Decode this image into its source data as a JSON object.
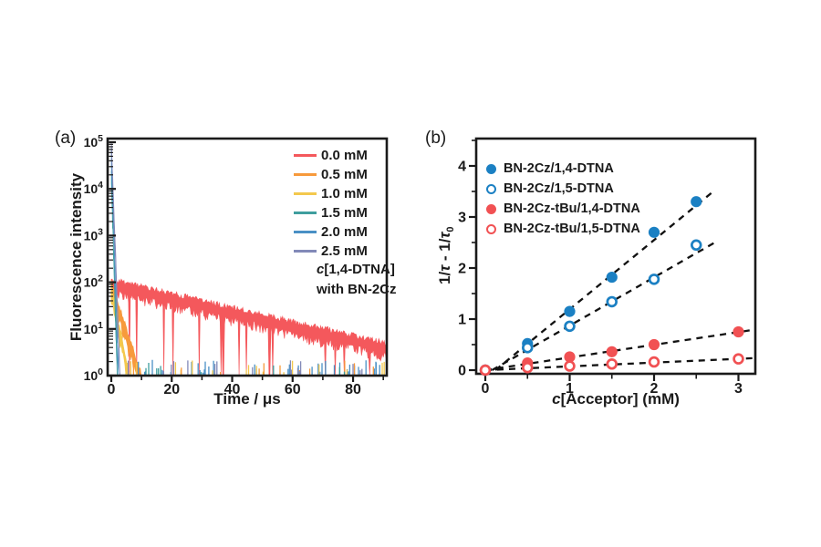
{
  "figure": {
    "background": "#ffffff",
    "frame_color": "#1a1a1a",
    "fit_line_color": "#111111"
  },
  "chart_data": [
    {
      "type": "line",
      "panel_label": "(a)",
      "scale": "semilog-y",
      "xlabel": "Time / μs",
      "ylabel": "Fluorescence intensity",
      "xlim": [
        0,
        91
      ],
      "ylim": [
        1,
        100000
      ],
      "x_ticks": [
        0,
        20,
        40,
        60,
        80
      ],
      "x_minor_ticks": [
        10,
        30,
        50,
        70,
        90
      ],
      "y_tick_exponents": [
        0,
        1,
        2,
        3,
        4,
        5
      ],
      "annotation": {
        "italic": "c",
        "bracket": "[1,4-DTNA]",
        "line2": "with BN-2Cz"
      },
      "legend_title": "concentration of 1,4-DTNA",
      "series": [
        {
          "label": "0.0 mM",
          "color": "#f4585c",
          "i0": 88,
          "tau": 29.0,
          "t_end": 91.0,
          "noise": 0.5,
          "deep": true
        },
        {
          "label": "0.5 mM",
          "color": "#f79a3c",
          "i0": 75,
          "tau": 2.2,
          "t_end": 10.5,
          "noise": 0.55,
          "deep": false
        },
        {
          "label": "1.0 mM",
          "color": "#f3c84d",
          "i0": 62,
          "tau": 1.4,
          "t_end": 7.0,
          "noise": 0.55,
          "deep": false
        },
        {
          "label": "1.5 mM",
          "color": "#3f9e9e",
          "i0": 20000,
          "tau": 0.2,
          "t_end": 3.4,
          "noise": 0.5,
          "deep": false
        },
        {
          "label": "2.0 mM",
          "color": "#4a90c5",
          "i0": 50000,
          "tau": 0.22,
          "t_end": 3.2,
          "noise": 0.5,
          "deep": false
        },
        {
          "label": "2.5 mM",
          "color": "#8289b8",
          "i0": 100000,
          "tau": 0.25,
          "t_end": 3.0,
          "noise": 0.5,
          "deep": false
        }
      ],
      "noise_spikes": {
        "seed": 11,
        "count": 88,
        "t_min": 1.5,
        "t_max": 90.5,
        "log_h_min": 0.06,
        "log_h_max": 0.34,
        "colors": [
          "#4a90c5",
          "#4a90c5",
          "#8289b8",
          "#3f9e9e",
          "#f79a3c",
          "#4a90c5",
          "#8289b8",
          "#f3c84d"
        ]
      }
    },
    {
      "type": "scatter",
      "panel_label": "(b)",
      "xlabel_italic": "c",
      "xlabel_rest": "[Acceptor]  (mM)",
      "ylabel_parts": {
        "p1": "1/",
        "tau1": "τ",
        "p2": " - 1/",
        "tau2": "τ",
        "sub": "0"
      },
      "xlim": [
        -0.11,
        3.2
      ],
      "ylim": [
        -0.15,
        4.55
      ],
      "x_ticks": [
        0,
        1,
        2,
        3
      ],
      "x_minor_ticks": [
        0.5,
        1.5,
        2.5
      ],
      "y_ticks": [
        0,
        1,
        2,
        3,
        4
      ],
      "y_minor_ticks": [
        0.5,
        1.5,
        2.5,
        3.5,
        4.5
      ],
      "series": [
        {
          "name": "BN-2Cz/1,4-DTNA",
          "marker": "filled",
          "color": "#1b80c3",
          "x": [
            0,
            0.5,
            1.0,
            1.5,
            2.0,
            2.5
          ],
          "y": [
            0,
            0.52,
            1.15,
            1.82,
            2.7,
            3.3
          ],
          "fit": {
            "x1": 0.12,
            "y1": 0.0,
            "x2": 2.68,
            "y2": 3.47
          }
        },
        {
          "name": "BN-2Cz/1,5-DTNA",
          "marker": "open",
          "color": "#1b80c3",
          "x": [
            0,
            0.5,
            1.0,
            1.5,
            2.0,
            2.5
          ],
          "y": [
            0,
            0.44,
            0.86,
            1.34,
            1.78,
            2.45
          ],
          "fit": {
            "x1": 0.08,
            "y1": 0.0,
            "x2": 2.72,
            "y2": 2.5
          }
        },
        {
          "name": "BN-2Cz-tBu/1,4-DTNA",
          "marker": "filled",
          "color": "#f15153",
          "x": [
            0,
            0.5,
            1.0,
            1.5,
            2.0,
            3.0
          ],
          "y": [
            0,
            0.14,
            0.26,
            0.36,
            0.5,
            0.75
          ],
          "fit": {
            "x1": 0.0,
            "y1": 0.0,
            "x2": 3.18,
            "y2": 0.79
          }
        },
        {
          "name": "BN-2Cz-tBu/1,5-DTNA",
          "marker": "open",
          "color": "#f15153",
          "x": [
            0,
            0.5,
            1.0,
            1.5,
            2.0,
            3.0
          ],
          "y": [
            0,
            0.05,
            0.08,
            0.12,
            0.16,
            0.22
          ],
          "fit": {
            "x1": 0.0,
            "y1": 0.0,
            "x2": 3.18,
            "y2": 0.235
          }
        }
      ],
      "fit_dash": [
        7,
        6
      ]
    }
  ]
}
